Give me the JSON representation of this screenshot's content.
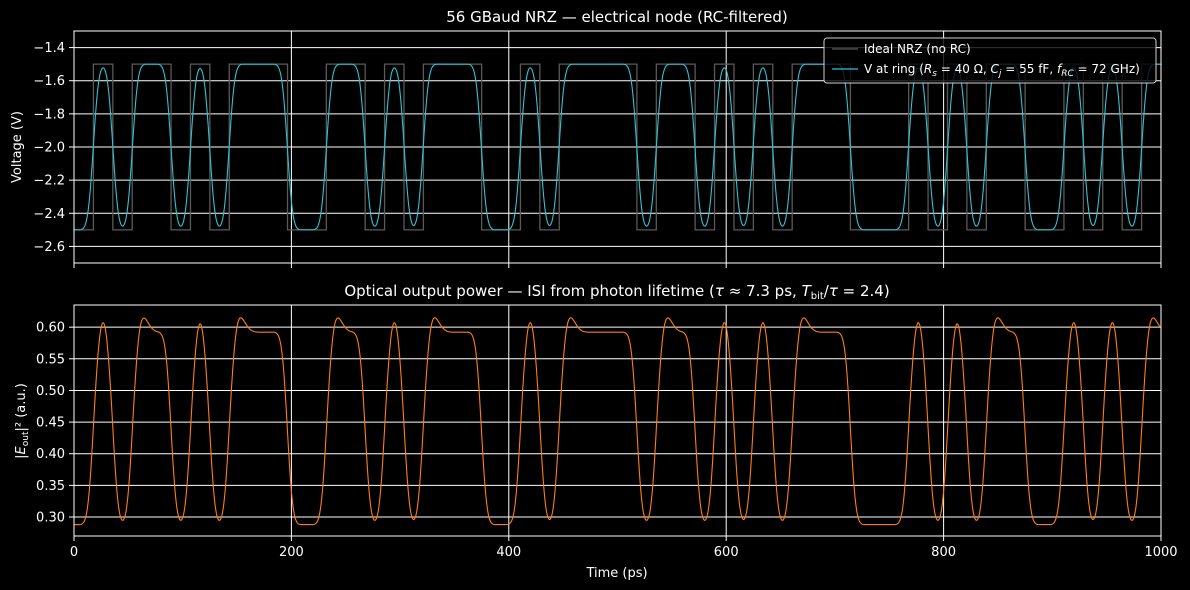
{
  "chart_data": [
    {
      "type": "line",
      "title": "56 GBaud NRZ — electrical node (RC-filtered)",
      "xlabel": "",
      "ylabel": "Voltage (V)",
      "xlim": [
        0,
        1000
      ],
      "ylim": [
        -2.7,
        -1.3
      ],
      "xticks": [
        0,
        200,
        400,
        600,
        800,
        1000
      ],
      "yticks": [
        -2.6,
        -2.4,
        -2.2,
        -2.0,
        -1.8,
        -1.6,
        -1.4
      ],
      "grid": true,
      "legend_position": "top-right",
      "bit_period_ps": 17.857,
      "bits": [
        0,
        1,
        0,
        1,
        1,
        0,
        1,
        0,
        1,
        1,
        1,
        0,
        0,
        1,
        1,
        0,
        1,
        0,
        1,
        1,
        1,
        0,
        0,
        1,
        0,
        1,
        1,
        1,
        1,
        0,
        1,
        1,
        0,
        1,
        0,
        1,
        0,
        1,
        1,
        1,
        0,
        0,
        0,
        1,
        0,
        1,
        0,
        1,
        1,
        0,
        0,
        1,
        0,
        1,
        0,
        1,
        1,
        1,
        0,
        0,
        1,
        0,
        0,
        0
      ],
      "series": [
        {
          "name": "Ideal NRZ (no RC)",
          "low": -2.5,
          "high": -1.5,
          "color": "#5a5a5a",
          "kind": "step"
        },
        {
          "name": "V at ring (R_s = 40 Ω, C_j = 55 fF, f_RC = 72 GHz)",
          "low": -2.5,
          "high": -1.5,
          "rise_time_constant_ps": 2.2,
          "color": "#2ec4d6",
          "kind": "filtered"
        }
      ]
    },
    {
      "type": "line",
      "title": "Optical output power — ISI from photon lifetime (τ ≈ 7.3 ps, T_bit/τ = 2.4)",
      "xlabel": "Time (ps)",
      "ylabel": "|E_out|² (a.u.)",
      "xlim": [
        0,
        1000
      ],
      "ylim": [
        0.27,
        0.635
      ],
      "xticks": [
        0,
        200,
        400,
        600,
        800,
        1000
      ],
      "yticks": [
        0.3,
        0.35,
        0.4,
        0.45,
        0.5,
        0.55,
        0.6
      ],
      "grid": true,
      "series": [
        {
          "name": "",
          "low": 0.288,
          "high": 0.592,
          "overshoot_peak": 0.617,
          "color": "#ff7f0e",
          "kind": "optical"
        }
      ]
    }
  ],
  "legend": {
    "ideal_label": "Ideal NRZ (no RC)",
    "ring_prefix": "V at ring (",
    "rs_sym": "R",
    "rs_sub": "s",
    "rs_val": " = 40 Ω, ",
    "cj_sym": "C",
    "cj_sub": "j",
    "cj_val": " = 55 fF, ",
    "frc_sym": "f",
    "frc_sub": "RC",
    "frc_val": " = 72 GHz)"
  },
  "bottom_title_parts": {
    "pre": "Optical output power — ISI from photon lifetime (",
    "tau": "τ",
    "mid": " ≈  7.3 ps, ",
    "T": "T",
    "bit": "bit",
    "slash": "/",
    "tau2": "τ",
    "post": " = 2.4)"
  },
  "bottom_ylabel_parts": {
    "pre": "|",
    "E": "E",
    "out": "out",
    "post": "|² (a.u.)"
  },
  "colors": {
    "background": "#000000",
    "grid": "#ffffff",
    "axes": "#ffffff",
    "ideal": "#5a5a5a",
    "ring": "#2ec4d6",
    "optical": "#ff7f0e"
  }
}
